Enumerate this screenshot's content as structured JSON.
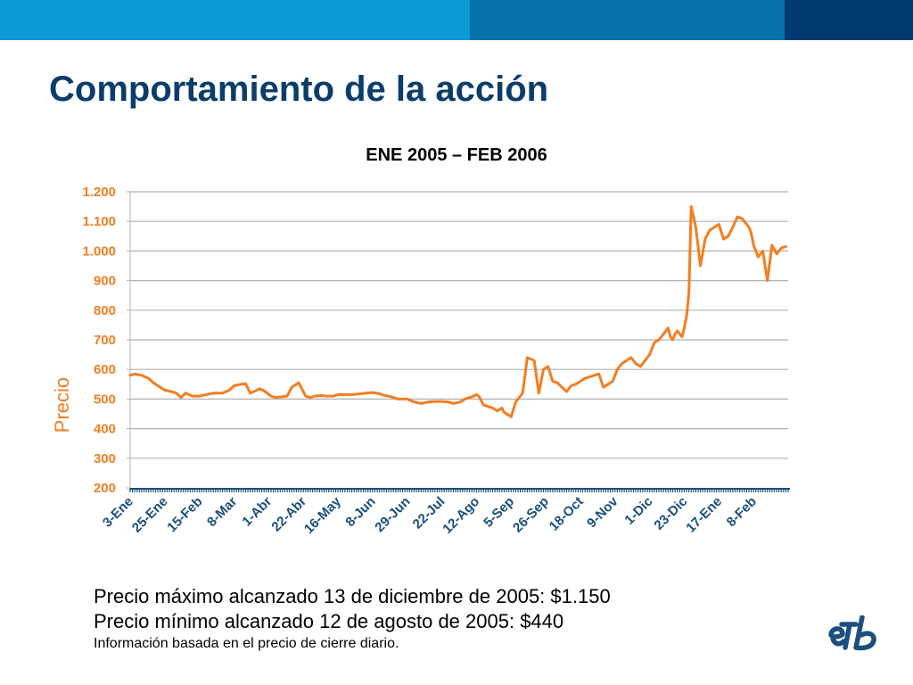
{
  "slide": {
    "title": "Comportamiento de la acción"
  },
  "notes": {
    "max_text": "Precio máximo alcanzado 13 de diciembre de 2005: $1.150",
    "min_text": "Precio mínimo alcanzado 12 de agosto de 2005: $440",
    "source_text": "Información basada en el precio de cierre diario."
  },
  "logo": {
    "text": "eTb"
  },
  "colors": {
    "series": "#f27e20",
    "axis_text": "#f27e20",
    "x_tick_text": "#1b4f7e",
    "grid": "#b0b0b0",
    "baseline": "#1b4f7e",
    "title_blue": "#0b3d6b"
  },
  "chart_data": {
    "type": "line",
    "title": "ENE 2005 – FEB 2006",
    "xlabel": "",
    "ylabel": "Precio",
    "ylim": [
      200,
      1200
    ],
    "yticks": [
      200,
      300,
      400,
      500,
      600,
      700,
      800,
      900,
      1000,
      1100,
      1200
    ],
    "ytick_labels": [
      "200",
      "300",
      "400",
      "500",
      "600",
      "700",
      "800",
      "900",
      "1.000",
      "1.100",
      "1.200"
    ],
    "grid": true,
    "legend": "none",
    "categories": [
      "3-Ene",
      "25-Ene",
      "15-Feb",
      "8-Mar",
      "1-Abr",
      "22-Abr",
      "16-May",
      "8-Jun",
      "29-Jun",
      "22-Jul",
      "12-Ago",
      "5-Sep",
      "26-Sep",
      "18-Oct",
      "9-Nov",
      "1-Dic",
      "23-Dic",
      "17-Ene",
      "8-Feb"
    ],
    "x_domain": [
      0,
      285
    ],
    "category_positions": [
      0,
      15,
      30,
      45,
      60,
      75,
      90,
      105,
      120,
      135,
      150,
      165,
      180,
      195,
      210,
      225,
      240,
      255,
      270
    ],
    "series": [
      {
        "name": "",
        "x": [
          0,
          2,
          5,
          8,
          10,
          12,
          15,
          18,
          20,
          22,
          24,
          27,
          30,
          33,
          36,
          40,
          43,
          45,
          48,
          50,
          52,
          55,
          56,
          58,
          61,
          63,
          65,
          68,
          70,
          73,
          74,
          76,
          78,
          80,
          83,
          85,
          88,
          90,
          92,
          94,
          96,
          99,
          102,
          105,
          108,
          110,
          112,
          114,
          116,
          118,
          120,
          123,
          126,
          129,
          132,
          135,
          138,
          140,
          143,
          145,
          147,
          149,
          150,
          151,
          153,
          155,
          157,
          158,
          159,
          161,
          162,
          163,
          165,
          167,
          168,
          170,
          172,
          175,
          177,
          179,
          181,
          183,
          185,
          187,
          189,
          191,
          193,
          195,
          197,
          199,
          201,
          203,
          205,
          207,
          209,
          211,
          213,
          215,
          217,
          219,
          221,
          223,
          225,
          227,
          229,
          231,
          233,
          234,
          235,
          236,
          237,
          238,
          239,
          240,
          241,
          242,
          243,
          245,
          247,
          249,
          251,
          253,
          255,
          257,
          259,
          261,
          263,
          265,
          266,
          267,
          268,
          269,
          270,
          272,
          274,
          276,
          278,
          280,
          282,
          284
        ],
        "values": [
          580,
          585,
          580,
          570,
          555,
          545,
          530,
          525,
          520,
          505,
          520,
          510,
          510,
          515,
          520,
          520,
          530,
          545,
          550,
          552,
          520,
          530,
          535,
          528,
          510,
          505,
          507,
          510,
          540,
          555,
          540,
          510,
          505,
          510,
          512,
          510,
          510,
          515,
          515,
          515,
          515,
          517,
          520,
          522,
          518,
          512,
          510,
          505,
          500,
          500,
          500,
          490,
          485,
          490,
          492,
          492,
          490,
          485,
          490,
          500,
          505,
          510,
          515,
          510,
          480,
          475,
          470,
          465,
          460,
          470,
          455,
          450,
          440,
          490,
          500,
          520,
          640,
          630,
          520,
          600,
          610,
          560,
          555,
          540,
          525,
          545,
          550,
          560,
          570,
          575,
          580,
          585,
          540,
          550,
          560,
          600,
          620,
          630,
          640,
          620,
          610,
          630,
          650,
          690,
          700,
          720,
          740,
          710,
          700,
          720,
          730,
          720,
          710,
          740,
          780,
          860,
          1150,
          1080,
          950,
          1040,
          1070,
          1080,
          1090,
          1040,
          1050,
          1080,
          1115,
          1110,
          1100,
          1090,
          1080,
          1060,
          1020,
          980,
          1000,
          900,
          1020,
          990,
          1010,
          1015
        ]
      }
    ]
  }
}
